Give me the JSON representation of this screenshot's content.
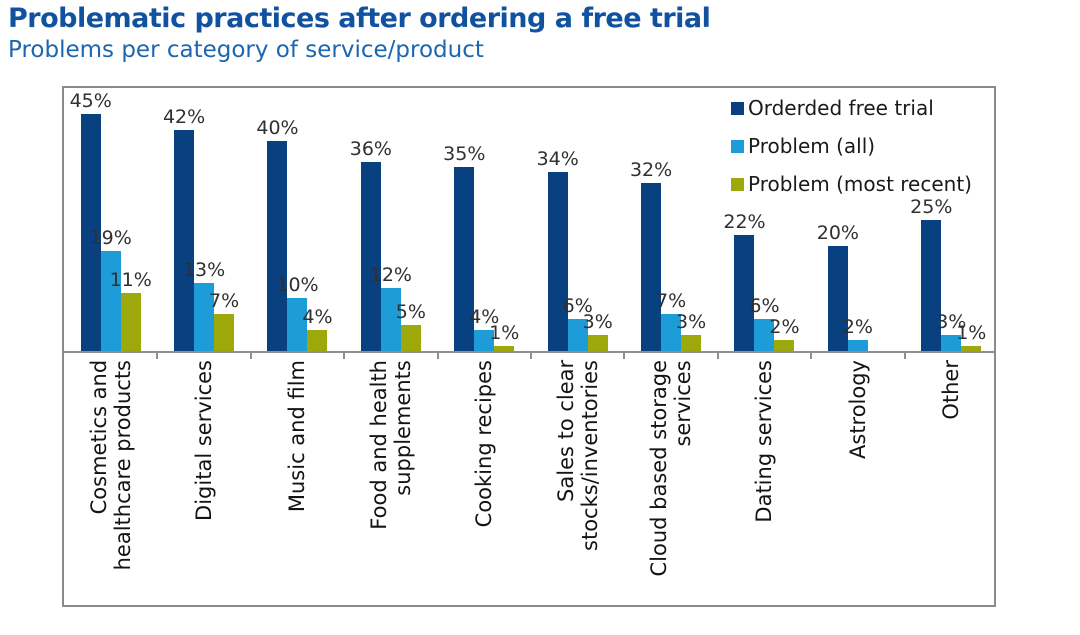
{
  "header": {
    "title": "Problematic practices after ordering a free trial",
    "subtitle": "Problems per category of service/product"
  },
  "colors": {
    "title_blue": "#10529F",
    "subtitle_blue": "#1C66AF",
    "navy": "#09407F",
    "light_blue": "#1E9CD8",
    "olive": "#9DA90A",
    "axis_gray": "#8F8F8F",
    "border_gray": "#8A8A8A",
    "value_label": "#303030"
  },
  "chart_data": {
    "type": "bar",
    "title": "Problematic practices after ordering a free trial",
    "subtitle": "Problems per category of service/product",
    "categories": [
      "Cosmetics and\nhealthcare products",
      "Digital services",
      "Music and film",
      "Food and health\nsupplements",
      "Cooking recipes",
      "Sales to clear\nstocks/inventories",
      "Cloud based storage\nservices",
      "Dating services",
      "Astrology",
      "Other"
    ],
    "series": [
      {
        "name": "Orderded free trial",
        "color": "#09407F",
        "values": [
          45,
          42,
          40,
          36,
          35,
          34,
          32,
          22,
          20,
          25
        ]
      },
      {
        "name": "Problem (all)",
        "color": "#1E9CD8",
        "values": [
          19,
          13,
          10,
          12,
          4,
          6,
          7,
          6,
          2,
          3
        ]
      },
      {
        "name": "Problem (most recent)",
        "color": "#9DA90A",
        "values": [
          11,
          7,
          4,
          5,
          1,
          3,
          3,
          2,
          null,
          1
        ]
      }
    ],
    "value_suffix": "%",
    "ylim": [
      0,
      50
    ],
    "grid": false,
    "data_labels": true,
    "legend_position": "top-right"
  }
}
